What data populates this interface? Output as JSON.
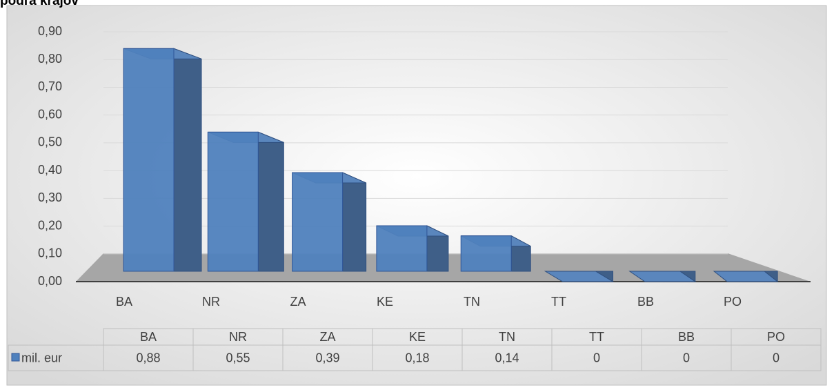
{
  "chart_data": {
    "type": "bar3d",
    "title": "podľa krajov",
    "categories": [
      "BA",
      "NR",
      "ZA",
      "KE",
      "TN",
      "TT",
      "BB",
      "PO"
    ],
    "series": [
      {
        "name": "mil. eur",
        "color": "#4f81bd",
        "values": [
          0.88,
          0.55,
          0.39,
          0.18,
          0.14,
          0,
          0,
          0
        ],
        "value_labels": [
          "0,88",
          "0,55",
          "0,39",
          "0,18",
          "0,14",
          "0",
          "0",
          "0"
        ]
      }
    ],
    "ylim": [
      0,
      0.9
    ],
    "yticks": [
      {
        "value": 0,
        "label": "0,00"
      },
      {
        "value": 0.1,
        "label": "0,10"
      },
      {
        "value": 0.2,
        "label": "0,20"
      },
      {
        "value": 0.3,
        "label": "0,30"
      },
      {
        "value": 0.4,
        "label": "0,40"
      },
      {
        "value": 0.5,
        "label": "0,50"
      },
      {
        "value": 0.6,
        "label": "0,60"
      },
      {
        "value": 0.7,
        "label": "0,70"
      },
      {
        "value": 0.8,
        "label": "0,80"
      },
      {
        "value": 0.9,
        "label": "0,90"
      }
    ],
    "grid": true,
    "data_table": true
  }
}
